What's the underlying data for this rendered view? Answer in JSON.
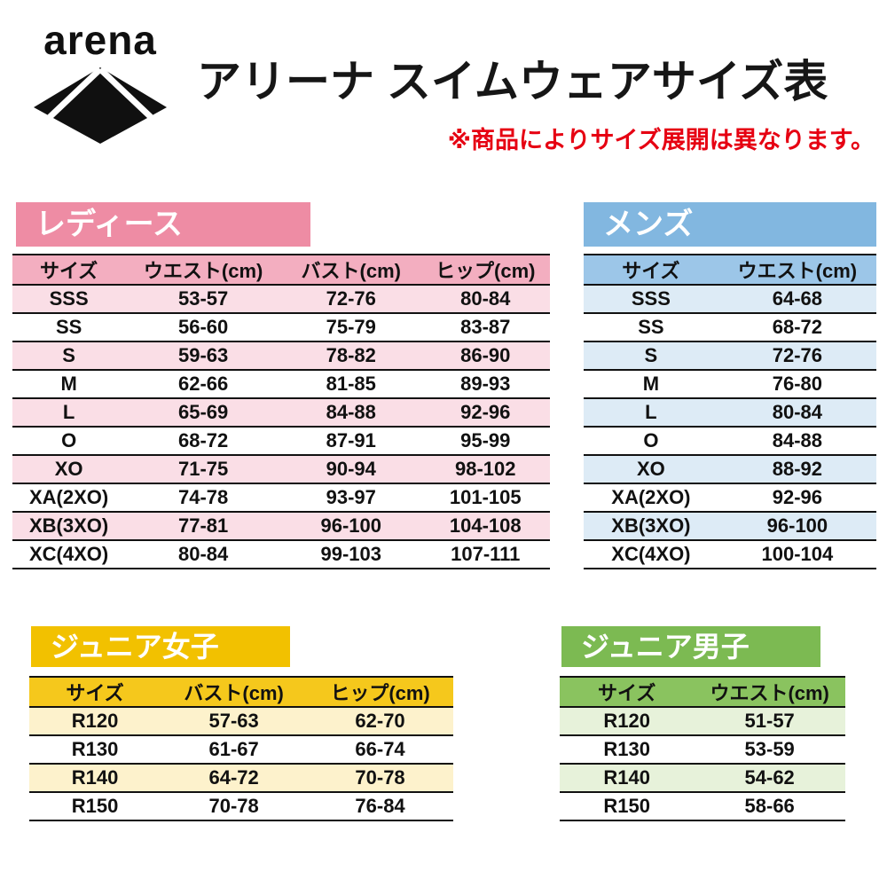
{
  "header": {
    "brand": "arena",
    "title": "アリーナ スイムウェアサイズ表",
    "note": "※商品によりサイズ展開は異なります。",
    "note_color": "#e60012"
  },
  "tables": {
    "ladies": {
      "badge": "レディース",
      "badge_bg": "#ee8ca4",
      "header_bg": "#f3aec0",
      "alt_bg": "#fadee6",
      "columns": [
        "サイズ",
        "ウエスト(cm)",
        "バスト(cm)",
        "ヒップ(cm)"
      ],
      "rows": [
        [
          "SSS",
          "53-57",
          "72-76",
          "80-84"
        ],
        [
          "SS",
          "56-60",
          "75-79",
          "83-87"
        ],
        [
          "S",
          "59-63",
          "78-82",
          "86-90"
        ],
        [
          "M",
          "62-66",
          "81-85",
          "89-93"
        ],
        [
          "L",
          "65-69",
          "84-88",
          "92-96"
        ],
        [
          "O",
          "68-72",
          "87-91",
          "95-99"
        ],
        [
          "XO",
          "71-75",
          "90-94",
          "98-102"
        ],
        [
          "XA(2XO)",
          "74-78",
          "93-97",
          "101-105"
        ],
        [
          "XB(3XO)",
          "77-81",
          "96-100",
          "104-108"
        ],
        [
          "XC(4XO)",
          "80-84",
          "99-103",
          "107-111"
        ]
      ]
    },
    "mens": {
      "badge": "メンズ",
      "badge_bg": "#82b7e0",
      "header_bg": "#9cc6e8",
      "alt_bg": "#ddebf6",
      "columns": [
        "サイズ",
        "ウエスト(cm)"
      ],
      "rows": [
        [
          "SSS",
          "64-68"
        ],
        [
          "SS",
          "68-72"
        ],
        [
          "S",
          "72-76"
        ],
        [
          "M",
          "76-80"
        ],
        [
          "L",
          "80-84"
        ],
        [
          "O",
          "84-88"
        ],
        [
          "XO",
          "88-92"
        ],
        [
          "XA(2XO)",
          "92-96"
        ],
        [
          "XB(3XO)",
          "96-100"
        ],
        [
          "XC(4XO)",
          "100-104"
        ]
      ]
    },
    "junior_girls": {
      "badge": "ジュニア女子",
      "badge_bg": "#f2c100",
      "header_bg": "#f5c81c",
      "alt_bg": "#fdf2cc",
      "columns": [
        "サイズ",
        "バスト(cm)",
        "ヒップ(cm)"
      ],
      "rows": [
        [
          "R120",
          "57-63",
          "62-70"
        ],
        [
          "R130",
          "61-67",
          "66-74"
        ],
        [
          "R140",
          "64-72",
          "70-78"
        ],
        [
          "R150",
          "70-78",
          "76-84"
        ]
      ]
    },
    "junior_boys": {
      "badge": "ジュニア男子",
      "badge_bg": "#7cba52",
      "header_bg": "#8ac35f",
      "alt_bg": "#e7f2da",
      "columns": [
        "サイズ",
        "ウエスト(cm)"
      ],
      "rows": [
        [
          "R120",
          "51-57"
        ],
        [
          "R130",
          "53-59"
        ],
        [
          "R140",
          "54-62"
        ],
        [
          "R150",
          "58-66"
        ]
      ]
    }
  }
}
